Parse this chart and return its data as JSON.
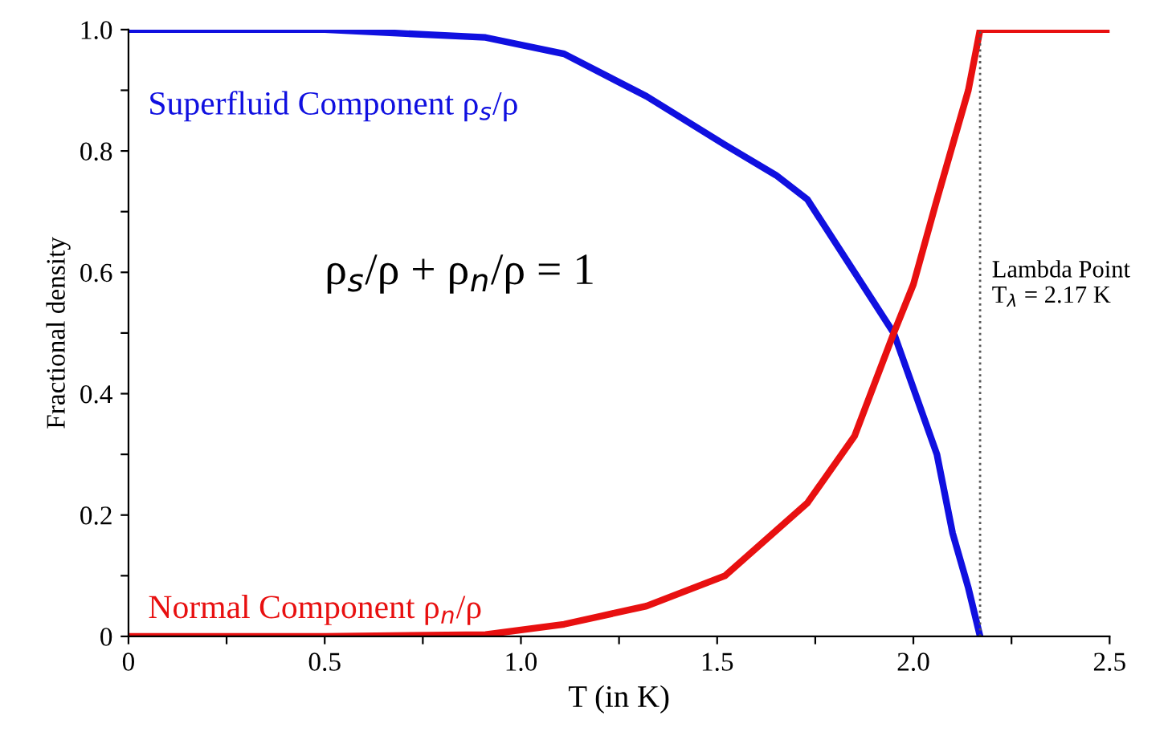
{
  "chart_data": {
    "type": "line",
    "xlabel": "T (in K)",
    "ylabel": "Fractional density",
    "xlim": [
      0,
      2.5
    ],
    "ylim": [
      0,
      1.0
    ],
    "xticks": [
      0,
      {
        "value": 0.25,
        "label": null
      },
      0.5,
      {
        "value": 0.75,
        "label": null
      },
      {
        "value": 1,
        "label": "1.0"
      },
      {
        "value": 1.25,
        "label": null
      },
      1.5,
      {
        "value": 1.75,
        "label": null
      },
      {
        "value": 2,
        "label": "2.0"
      },
      {
        "value": 2.25,
        "label": null
      },
      2.5
    ],
    "yticks": [
      0,
      {
        "value": 0.1,
        "label": null
      },
      0.2,
      {
        "value": 0.3,
        "label": null
      },
      0.4,
      {
        "value": 0.5,
        "label": null
      },
      0.6,
      {
        "value": 0.7,
        "label": null
      },
      0.8,
      {
        "value": 0.9,
        "label": null
      },
      {
        "value": 1,
        "label": "1.0"
      }
    ],
    "series": [
      {
        "name": "Superfluid Component ρ$_{s}$/ρ",
        "color": "#1010e0",
        "x": [
          0,
          0.5,
          0.91,
          1.11,
          1.32,
          1.52,
          1.65,
          1.73,
          1.85,
          1.95,
          2.06,
          2.1,
          2.14,
          2.17
        ],
        "values": [
          1.0,
          1.0,
          0.987,
          0.96,
          0.89,
          0.81,
          0.76,
          0.72,
          0.6,
          0.5,
          0.3,
          0.17,
          0.08,
          0
        ]
      },
      {
        "name": "Normal Component ρ$_{n}$/ρ",
        "color": "#e81010",
        "x": [
          0,
          0.5,
          0.91,
          1.11,
          1.32,
          1.52,
          1.73,
          1.85,
          1.95,
          2.0,
          2.06,
          2.14,
          2.17,
          2.5
        ],
        "values": [
          0,
          0,
          0.003,
          0.02,
          0.05,
          0.1,
          0.22,
          0.33,
          0.5,
          0.58,
          0.72,
          0.9,
          1.0,
          1.0
        ]
      }
    ],
    "ref_lines": [
      {
        "axis": "x",
        "value": 2.17,
        "label": "Lambda Point\nT$_{λ}$ = 2.17 K",
        "color": "#555555",
        "line_style": "dotted"
      }
    ],
    "annotations": [
      "ρ$_{s}$/ρ + ρ$_{n}$/ρ = 1"
    ],
    "grid": false,
    "legend": false,
    "marker": "none",
    "line_style": "solid"
  }
}
